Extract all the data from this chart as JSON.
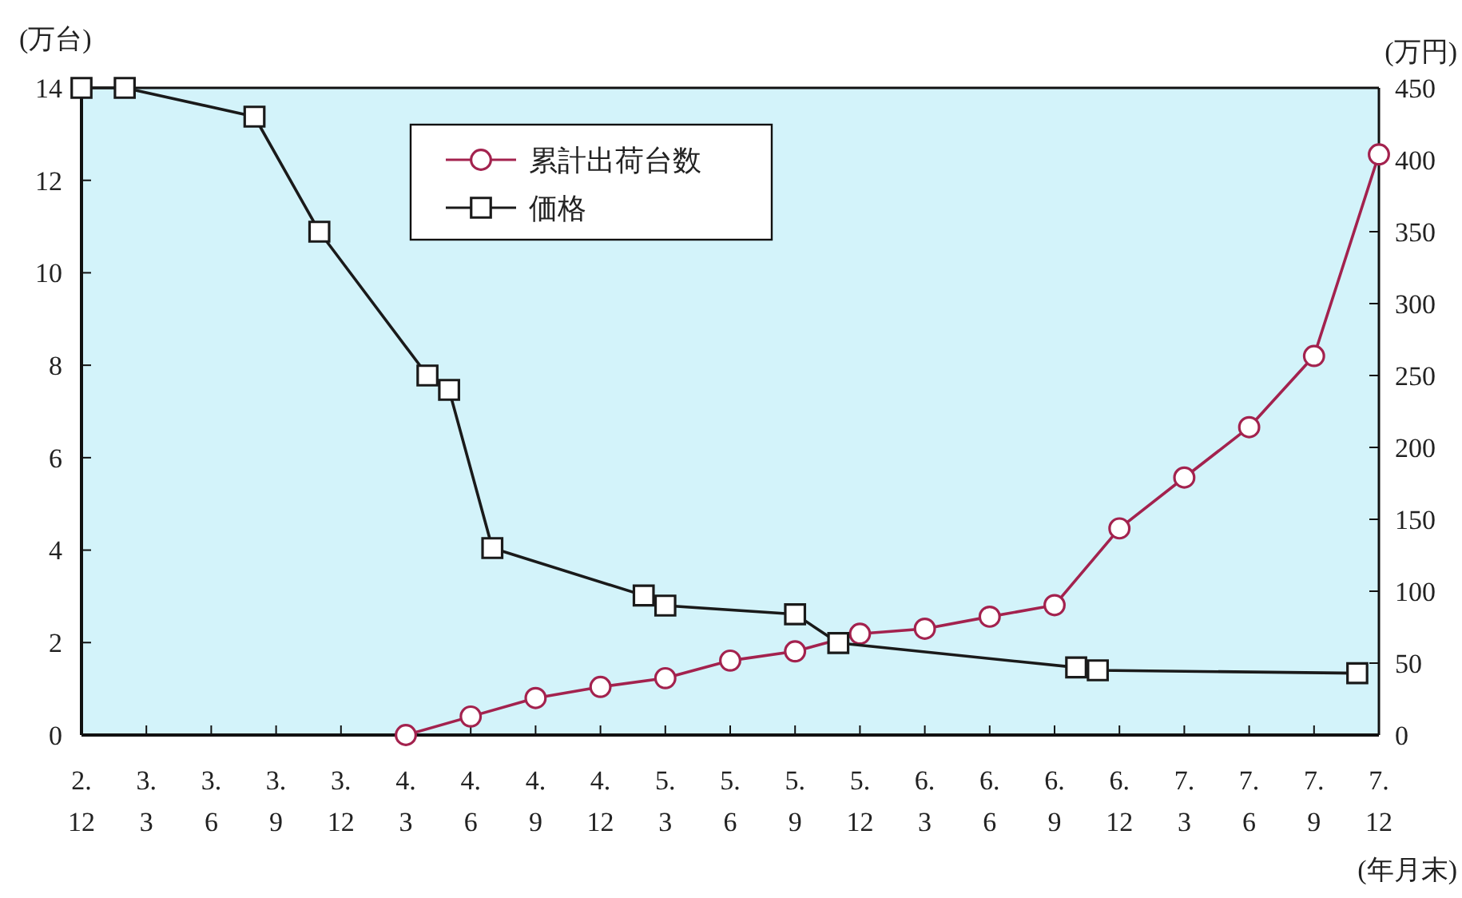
{
  "chart_data": {
    "type": "line",
    "xlabel": "(年月末)",
    "ylabel": "(万台)",
    "y2label": "(万円)",
    "categories": [
      "2.\n12",
      null,
      null,
      "3.\n3",
      null,
      null,
      "3.\n6",
      null,
      null,
      "3.\n9",
      null,
      null,
      "3.\n12",
      null,
      null,
      "4.\n3",
      null,
      null,
      "4.\n6",
      null,
      null,
      "4.\n9",
      null,
      null,
      "4.\n12",
      null,
      null,
      "5.\n3",
      null,
      null,
      "5.\n6",
      null,
      null,
      "5.\n9",
      null,
      null,
      "5.\n12",
      null,
      null,
      "6.\n3",
      null,
      null,
      "6.\n6",
      null,
      null,
      "6.\n9",
      null,
      null,
      "6.\n12",
      null,
      null,
      "7.\n3",
      null,
      null,
      "7.\n6",
      null,
      null,
      "7.\n9",
      null,
      null,
      "7.\n12"
    ],
    "ylim": [
      0,
      14
    ],
    "yticks": [
      0,
      2,
      4,
      6,
      8,
      10,
      12,
      14
    ],
    "y2lim": [
      0,
      450
    ],
    "y2ticks": [
      0,
      50,
      100,
      150,
      200,
      250,
      300,
      350,
      400,
      450
    ],
    "legend": "top left",
    "grid": false,
    "series": [
      {
        "name": "累計出荷台数",
        "color": "#a3224e",
        "marker": "circle",
        "values": [
          null,
          null,
          null,
          null,
          null,
          null,
          null,
          null,
          null,
          null,
          null,
          null,
          null,
          null,
          null,
          0,
          null,
          null,
          0.4,
          null,
          null,
          0.8,
          null,
          null,
          1.04,
          null,
          null,
          1.23,
          null,
          null,
          1.61,
          null,
          null,
          1.81,
          null,
          null,
          2.19,
          null,
          null,
          2.3,
          null,
          null,
          2.56,
          null,
          null,
          2.81,
          null,
          null,
          4.47,
          null,
          null,
          5.57,
          null,
          null,
          6.66,
          null,
          null,
          8.2,
          null,
          null,
          12.56
        ]
      },
      {
        "name": "価格",
        "color": "#1a1a1a",
        "marker": "square",
        "axis": "y2",
        "values": [
          450,
          null,
          450,
          null,
          null,
          null,
          null,
          null,
          430,
          null,
          null,
          350,
          null,
          null,
          null,
          null,
          250,
          240,
          null,
          130,
          null,
          null,
          null,
          null,
          null,
          null,
          97,
          90,
          null,
          null,
          null,
          null,
          null,
          84,
          null,
          64,
          null,
          null,
          null,
          null,
          null,
          null,
          null,
          null,
          null,
          null,
          47,
          45,
          null,
          null,
          null,
          null,
          null,
          null,
          null,
          null,
          null,
          null,
          null,
          43,
          null
        ]
      }
    ]
  }
}
